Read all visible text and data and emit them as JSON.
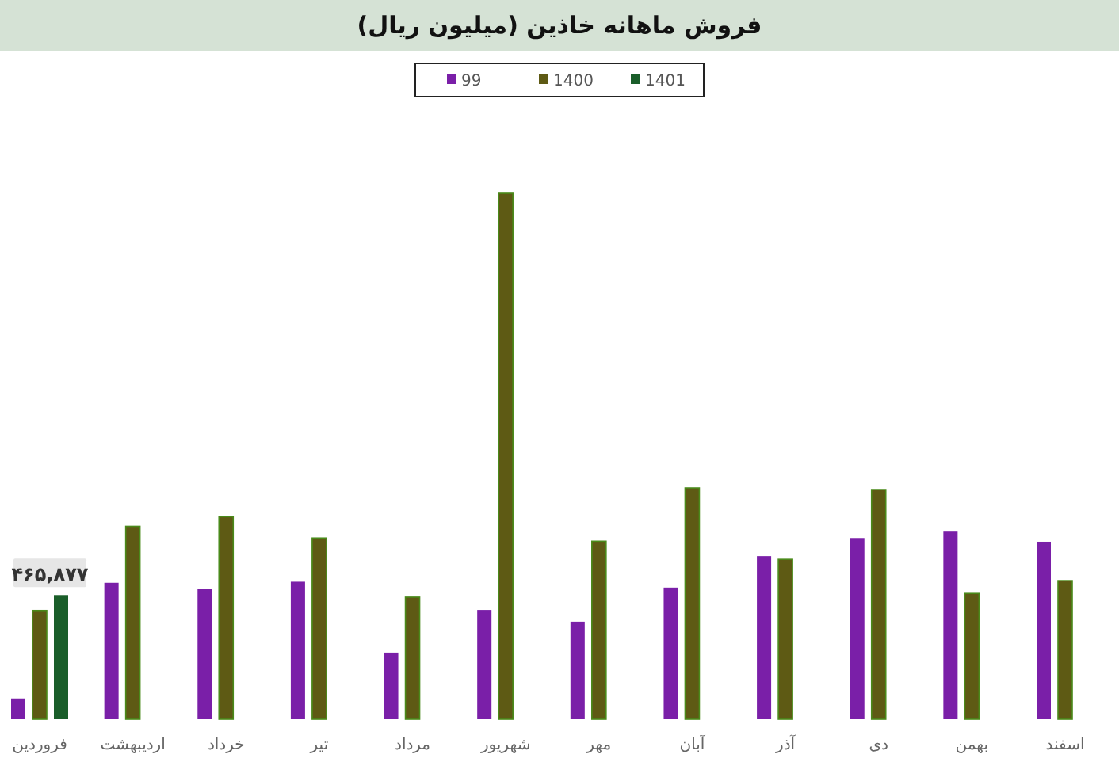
{
  "chart_data": {
    "type": "bar",
    "title": "فروش ماهانه خاذین (میلیون ریال)",
    "categories": [
      "فروردین",
      "اردیبهشت",
      "خرداد",
      "تیر",
      "مرداد",
      "شهریور",
      "مهر",
      "آبان",
      "آذر",
      "دی",
      "بهمن",
      "اسفند"
    ],
    "series": [
      {
        "name": "99",
        "color": "#7a1fa8",
        "values": [
          78000,
          512000,
          488000,
          516000,
          250000,
          410000,
          366000,
          494000,
          612000,
          680000,
          704000,
          666000
        ]
      },
      {
        "name": "1400",
        "color": "#5e5a14",
        "values": [
          408000,
          724000,
          760000,
          680000,
          458000,
          1974000,
          668000,
          868000,
          600000,
          862000,
          472000,
          520000
        ]
      },
      {
        "name": "1401",
        "color": "#1a5e2a",
        "values": [
          465877,
          null,
          null,
          null,
          null,
          null,
          null,
          null,
          null,
          null,
          null,
          null
        ],
        "value_labels": [
          "۴۶۵,۸۷۷",
          null,
          null,
          null,
          null,
          null,
          null,
          null,
          null,
          null,
          null,
          null
        ]
      }
    ],
    "legend": "top",
    "grid": false
  }
}
